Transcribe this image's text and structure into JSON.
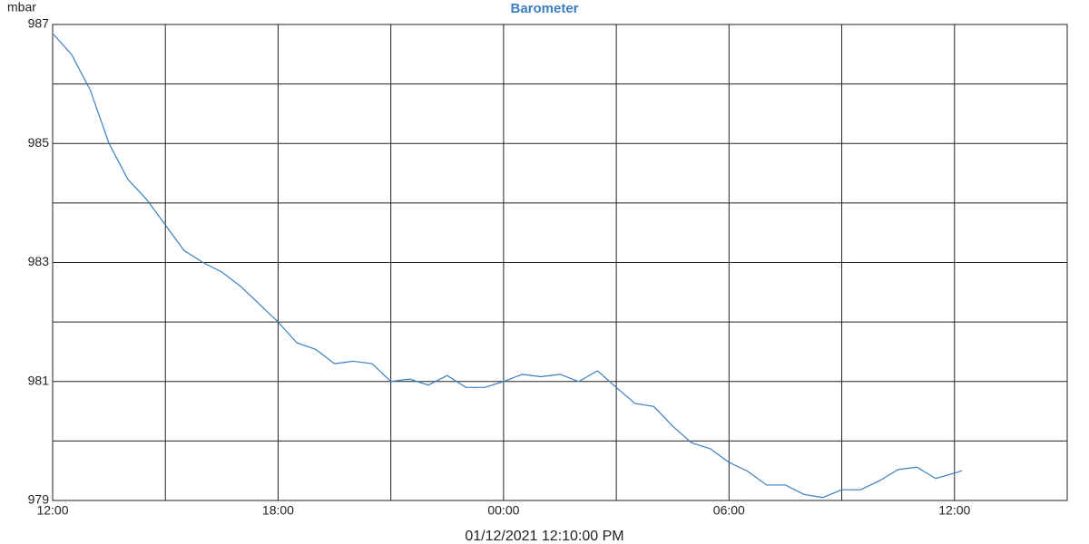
{
  "chart_data": {
    "type": "line",
    "title": "Barometer",
    "ylabel": "mbar",
    "footer": "01/12/2021 12:10:00 PM",
    "x": [
      0,
      0.5,
      1,
      1.5,
      2,
      2.5,
      3,
      3.5,
      4,
      4.5,
      5,
      5.5,
      6,
      6.5,
      7,
      7.5,
      8,
      8.5,
      9,
      9.5,
      10,
      10.5,
      11,
      11.5,
      12,
      12.5,
      13,
      13.5,
      14,
      14.5,
      15,
      15.5,
      16,
      16.5,
      17,
      17.5,
      18,
      18.5,
      19,
      19.5,
      20,
      20.5,
      21,
      21.5,
      22,
      22.5,
      23,
      23.5,
      24,
      24.2
    ],
    "series": [
      {
        "name": "Barometer",
        "color": "#3a7fc0",
        "values": [
          986.85,
          986.5,
          985.9,
          985.0,
          984.4,
          984.06,
          983.63,
          983.2,
          983.0,
          982.84,
          982.6,
          982.3,
          982.0,
          981.65,
          981.54,
          981.3,
          981.34,
          981.3,
          981.0,
          981.04,
          980.94,
          981.1,
          980.9,
          980.9,
          981.0,
          981.12,
          981.08,
          981.12,
          981.0,
          981.18,
          980.9,
          980.63,
          980.58,
          980.25,
          979.97,
          979.87,
          979.64,
          979.49,
          979.26,
          979.26,
          979.1,
          979.05,
          979.18,
          979.18,
          979.33,
          979.52,
          979.56,
          979.37,
          979.46,
          979.5
        ]
      }
    ],
    "xlim": [
      0,
      27
    ],
    "xticks": [
      {
        "value": 0,
        "label": "12:00"
      },
      {
        "value": 6,
        "label": "18:00"
      },
      {
        "value": 12,
        "label": "00:00"
      },
      {
        "value": 18,
        "label": "06:00"
      },
      {
        "value": 24,
        "label": "12:00"
      }
    ],
    "xminor": [
      3,
      9,
      15,
      21
    ],
    "ylim": [
      979,
      987
    ],
    "yticks": [
      979,
      981,
      983,
      985,
      987
    ],
    "yminor": [
      980,
      982,
      984,
      986
    ],
    "grid": true
  }
}
